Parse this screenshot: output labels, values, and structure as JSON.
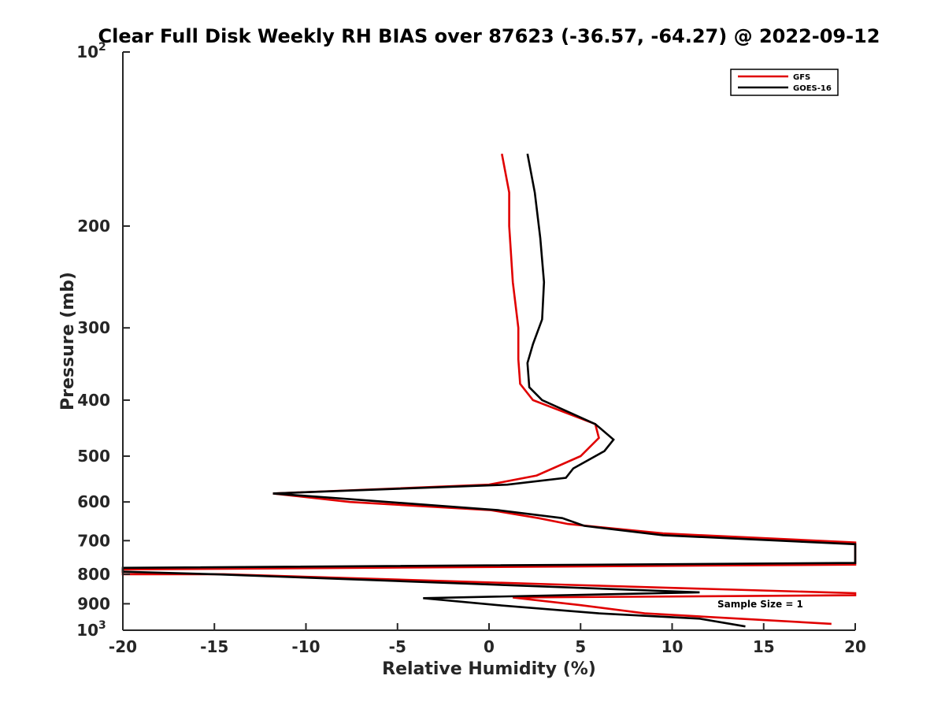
{
  "chart_data": {
    "type": "line",
    "title": "Clear Full Disk Weekly RH BIAS over 87623 (-36.57, -64.27) @ 2022-09-12",
    "xlabel": "Relative Humidity (%)",
    "ylabel": "Pressure (mb)",
    "xlim": [
      -20,
      20
    ],
    "ylim": [
      100,
      1000
    ],
    "yscale": "log",
    "y_reversed": true,
    "xticks": [
      -20,
      -15,
      -10,
      -5,
      0,
      5,
      10,
      15,
      20
    ],
    "xtick_labels": [
      "-20",
      "-15",
      "-10",
      "-5",
      "0",
      "5",
      "10",
      "15",
      "20"
    ],
    "yticks": [
      100,
      200,
      300,
      400,
      500,
      600,
      700,
      800,
      900,
      1000
    ],
    "ytick_labels": [
      {
        "base": "10",
        "exp": "2"
      },
      {
        "base": "200",
        "exp": ""
      },
      {
        "base": "300",
        "exp": ""
      },
      {
        "base": "400",
        "exp": ""
      },
      {
        "base": "500",
        "exp": ""
      },
      {
        "base": "600",
        "exp": ""
      },
      {
        "base": "700",
        "exp": ""
      },
      {
        "base": "800",
        "exp": ""
      },
      {
        "base": "900",
        "exp": ""
      },
      {
        "base": "10",
        "exp": "3"
      }
    ],
    "grid": false,
    "legend_position": "top-right",
    "annotation": "Sample Size = 1",
    "series": [
      {
        "name": "GFS",
        "color": "#e00000",
        "points": [
          [
            0.7,
            150
          ],
          [
            1.1,
            175
          ],
          [
            1.1,
            200
          ],
          [
            1.3,
            250
          ],
          [
            1.6,
            300
          ],
          [
            1.6,
            340
          ],
          [
            1.7,
            375
          ],
          [
            2.4,
            400
          ],
          [
            5.8,
            440
          ],
          [
            6.0,
            465
          ],
          [
            5.0,
            500
          ],
          [
            2.6,
            540
          ],
          [
            0.0,
            560
          ],
          [
            -11.8,
            580
          ],
          [
            -7.6,
            600
          ],
          [
            0.1,
            620
          ],
          [
            2.7,
            640
          ],
          [
            4.3,
            655
          ],
          [
            9.5,
            680
          ],
          [
            20.0,
            705
          ],
          [
            20.0,
            770
          ],
          [
            -20.0,
            785
          ],
          [
            -20.0,
            800
          ],
          [
            -14.5,
            800
          ],
          [
            4.5,
            835
          ],
          [
            20.0,
            863
          ],
          [
            20.0,
            870
          ],
          [
            1.3,
            878
          ],
          [
            5.0,
            905
          ],
          [
            8.5,
            935
          ],
          [
            18.7,
            975
          ]
        ]
      },
      {
        "name": "GOES-16",
        "color": "#000000",
        "points": [
          [
            2.1,
            150
          ],
          [
            2.5,
            175
          ],
          [
            2.8,
            210
          ],
          [
            3.0,
            250
          ],
          [
            2.9,
            290
          ],
          [
            2.4,
            320
          ],
          [
            2.1,
            345
          ],
          [
            2.2,
            380
          ],
          [
            2.9,
            400
          ],
          [
            5.8,
            440
          ],
          [
            6.8,
            468
          ],
          [
            6.3,
            490
          ],
          [
            4.6,
            525
          ],
          [
            4.2,
            545
          ],
          [
            1.0,
            560
          ],
          [
            -11.8,
            580
          ],
          [
            -4.0,
            605
          ],
          [
            0.5,
            620
          ],
          [
            4.0,
            640
          ],
          [
            5.2,
            660
          ],
          [
            9.5,
            685
          ],
          [
            20.0,
            710
          ],
          [
            20.0,
            765
          ],
          [
            -20.0,
            780
          ],
          [
            -20.0,
            792
          ],
          [
            -15.0,
            800
          ],
          [
            11.5,
            860
          ],
          [
            -3.6,
            880
          ],
          [
            0.5,
            905
          ],
          [
            6.0,
            935
          ],
          [
            11.5,
            955
          ],
          [
            14.0,
            985
          ]
        ]
      }
    ]
  }
}
